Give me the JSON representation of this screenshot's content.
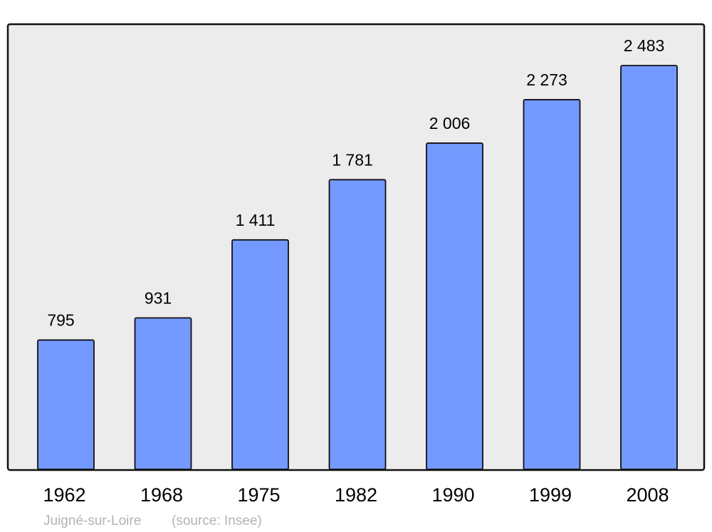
{
  "chart_data": {
    "type": "bar",
    "categories": [
      "1962",
      "1968",
      "1975",
      "1982",
      "1990",
      "1999",
      "2008"
    ],
    "values": [
      795,
      931,
      1411,
      1781,
      2006,
      2273,
      2483
    ],
    "value_labels": [
      "795",
      "931",
      "1 411",
      "1 781",
      "2 006",
      "2 273",
      "2 483"
    ],
    "title": "",
    "xlabel": "",
    "ylabel": "",
    "ylim": [
      0,
      2483
    ],
    "grid": false,
    "bar_color": "#7499ff",
    "background_color": "#ececec"
  },
  "footer": {
    "place": "Juigné-sur-Loire",
    "source": "(source: Insee)"
  }
}
